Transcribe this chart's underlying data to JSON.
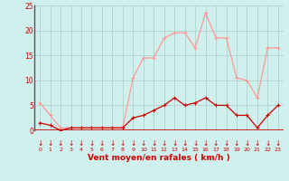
{
  "hours": [
    0,
    1,
    2,
    3,
    4,
    5,
    6,
    7,
    8,
    9,
    10,
    11,
    12,
    13,
    14,
    15,
    16,
    17,
    18,
    19,
    20,
    21,
    22,
    23
  ],
  "wind_avg": [
    1.5,
    1,
    0,
    0.5,
    0.5,
    0.5,
    0.5,
    0.5,
    0.5,
    2.5,
    3,
    4,
    5,
    6.5,
    5,
    5.5,
    6.5,
    5,
    5,
    3,
    3,
    0.5,
    3,
    5
  ],
  "wind_gust": [
    5.5,
    3,
    0.5,
    0.5,
    0.5,
    0.5,
    0.5,
    0.5,
    0.5,
    10.5,
    14.5,
    14.5,
    18.5,
    19.5,
    19.5,
    16.5,
    23.5,
    18.5,
    18.5,
    10.5,
    10,
    6.5,
    16.5,
    16.5
  ],
  "bg_color": "#cff0ec",
  "grid_color": "#aacccc",
  "line_avg_color": "#cc0000",
  "line_gust_color": "#ff9999",
  "arrow_color": "#cc0000",
  "xlabel": "Vent moyen/en rafales ( km/h )",
  "xlabel_color": "#cc0000",
  "tick_color": "#cc0000",
  "ylim": [
    0,
    25
  ],
  "yticks": [
    0,
    5,
    10,
    15,
    20,
    25
  ],
  "hline_color": "#cc0000",
  "left_spine_color": "#555555"
}
